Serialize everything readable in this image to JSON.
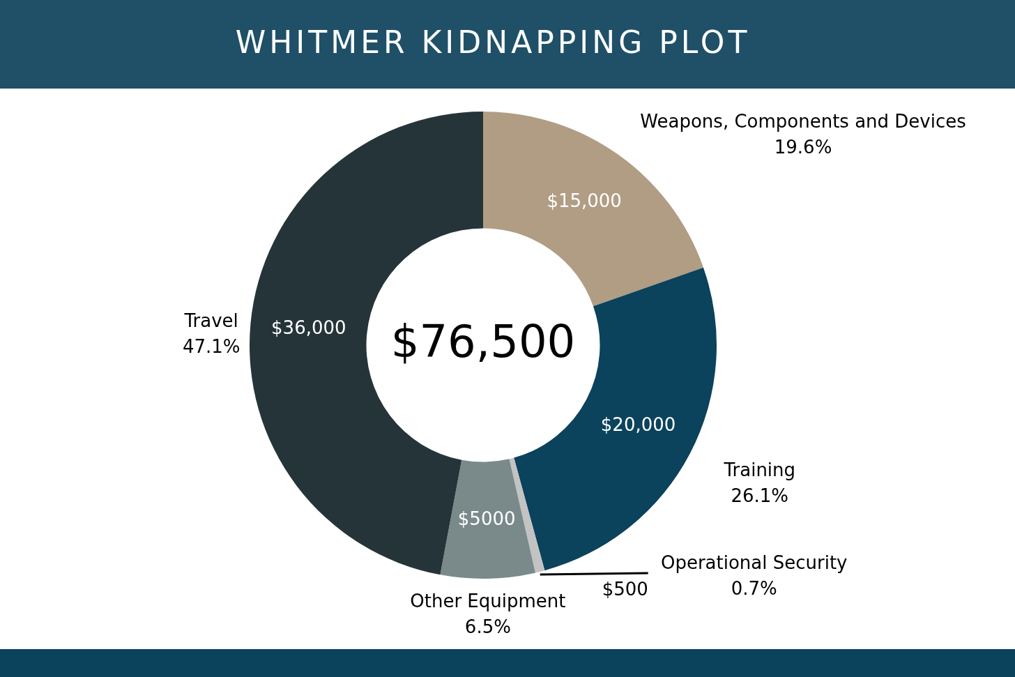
{
  "chart_data": {
    "type": "donut",
    "title": "WHITMER KIDNAPPING PLOT",
    "categories": [
      "Weapons, Components and Devices",
      "Training",
      "Operational Security",
      "Other Equipment",
      "Travel"
    ],
    "values": [
      15000,
      20000,
      500,
      5000,
      36000
    ],
    "colors": [
      "#b09d84",
      "#0b425c",
      "#c3c3c3",
      "#7a8a8a",
      "#253439"
    ],
    "value_labels": [
      "$15,000",
      "$20,000",
      "$500",
      "$5000",
      "$36,000"
    ],
    "annotations": [
      "19.6%",
      "26.1%",
      "0.7%",
      "6.5%",
      "47.1%"
    ],
    "totals": [
      "$76,500"
    ],
    "legend": false
  }
}
